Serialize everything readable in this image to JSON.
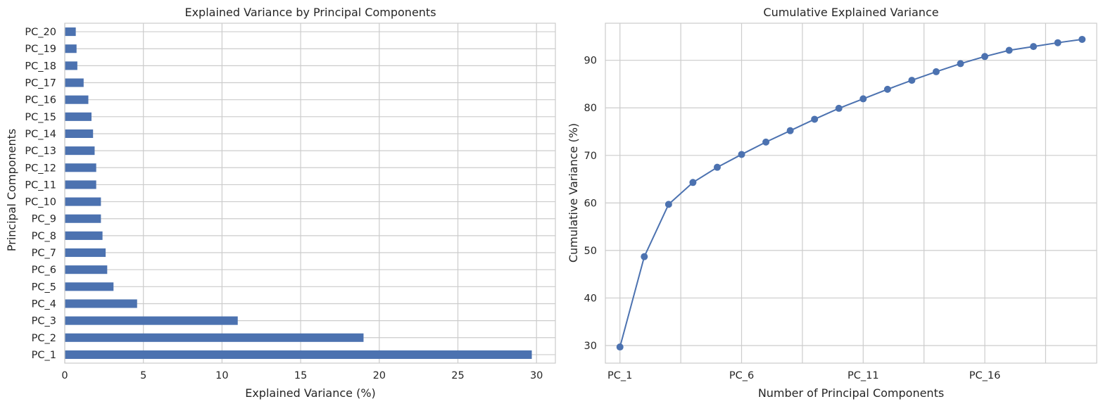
{
  "chart_data": [
    {
      "type": "bar",
      "orientation": "horizontal",
      "title": "Explained Variance by Principal Components",
      "xlabel": "Explained Variance (%)",
      "ylabel": "Principal Components",
      "categories": [
        "PC_1",
        "PC_2",
        "PC_3",
        "PC_4",
        "PC_5",
        "PC_6",
        "PC_7",
        "PC_8",
        "PC_9",
        "PC_10",
        "PC_11",
        "PC_12",
        "PC_13",
        "PC_14",
        "PC_15",
        "PC_16",
        "PC_17",
        "PC_18",
        "PC_19",
        "PC_20"
      ],
      "values": [
        29.7,
        19.0,
        11.0,
        4.6,
        3.1,
        2.7,
        2.6,
        2.4,
        2.3,
        2.3,
        2.0,
        2.0,
        1.9,
        1.8,
        1.7,
        1.5,
        1.2,
        0.8,
        0.75,
        0.7
      ],
      "xlim": [
        0,
        31.2
      ],
      "xticks": [
        0,
        5,
        10,
        15,
        20,
        25,
        30
      ],
      "grid": true,
      "color": "#4c72b0"
    },
    {
      "type": "line",
      "title": "Cumulative Explained Variance",
      "xlabel": "Number of Principal Components",
      "ylabel": "Cumulative Variance (%)",
      "x": [
        "PC_1",
        "PC_2",
        "PC_3",
        "PC_4",
        "PC_5",
        "PC_6",
        "PC_7",
        "PC_8",
        "PC_9",
        "PC_10",
        "PC_11",
        "PC_12",
        "PC_13",
        "PC_14",
        "PC_15",
        "PC_16",
        "PC_17",
        "PC_18",
        "PC_19",
        "PC_20"
      ],
      "values": [
        29.7,
        48.7,
        59.7,
        64.3,
        67.5,
        70.2,
        72.8,
        75.2,
        77.6,
        79.9,
        81.9,
        83.9,
        85.8,
        87.6,
        89.3,
        90.8,
        92.1,
        92.9,
        93.7,
        94.4
      ],
      "xticks": [
        "PC_1",
        "PC_6",
        "PC_11",
        "PC_16"
      ],
      "yticks": [
        30,
        40,
        50,
        60,
        70,
        80,
        90
      ],
      "ylim": [
        26.3,
        97.8
      ],
      "grid": true,
      "marker": "circle",
      "color": "#4c72b0"
    }
  ]
}
